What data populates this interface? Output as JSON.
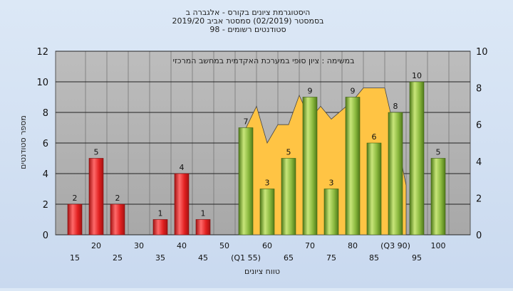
{
  "chart_data": {
    "type": "bar",
    "title_lines": [
      "היסטוגרמת ציונים בקורס - אלגברה ב",
      "בסמסטר  (02/2019)  סמסטר אביב 2019/20",
      "סטודנטים רשומים - 98"
    ],
    "subtitle": "במשימה : ציון סופי במערכת האקדמית במחשב המרכזי",
    "xlabel": "טווח ציונים",
    "ylabel": "מספר סטודנטים",
    "categories": [
      "15",
      "20",
      "25",
      "30",
      "35",
      "40",
      "45",
      "50",
      "55",
      "60",
      "65",
      "70",
      "75",
      "80",
      "85",
      "90",
      "95",
      "100"
    ],
    "category_labels": [
      "15",
      "20",
      "25",
      "30",
      "35",
      "40",
      "45",
      "50",
      "(Q1 55)",
      "60",
      "65",
      "70",
      "75",
      "80",
      "85",
      "(Q3 90)",
      "95",
      "100"
    ],
    "values": [
      2,
      5,
      2,
      0,
      1,
      4,
      1,
      0,
      7,
      3,
      5,
      9,
      3,
      9,
      6,
      8,
      10,
      5
    ],
    "value_labels": [
      "2",
      "5",
      "2",
      "",
      "1",
      "4",
      "1",
      "",
      "7",
      "3",
      "5",
      "9",
      "3",
      "9",
      "6",
      "8",
      "10",
      "5"
    ],
    "bar_colors": [
      "red",
      "red",
      "red",
      "red",
      "red",
      "red",
      "red",
      "red",
      "green",
      "green",
      "green",
      "green",
      "green",
      "green",
      "green",
      "green",
      "green",
      "green"
    ],
    "ylim": [
      0,
      12
    ],
    "yticks": [
      "0",
      "2",
      "4",
      "6",
      "8",
      "10",
      "12"
    ],
    "y2lim": [
      0,
      10
    ],
    "y2ticks": [
      "0",
      "2",
      "4",
      "6",
      "8",
      "10"
    ],
    "area": {
      "x": [
        55,
        57.5,
        60,
        62.5,
        65,
        67.5,
        70,
        72.5,
        75,
        77.5,
        80,
        82.5,
        85,
        87.5,
        90,
        92.5
      ],
      "y2": [
        5.8,
        7.0,
        5.0,
        6.0,
        6.0,
        7.6,
        6.3,
        7.0,
        6.3,
        6.8,
        7.3,
        8.0,
        8.0,
        8.0,
        5.5,
        2.7
      ]
    },
    "grid": true,
    "colors": {
      "plot_bg": "#b0b0b0",
      "area_fill": "#ffc444",
      "red_top": "#ff6a6a",
      "red_mid": "#e12020",
      "red_dark": "#a51212",
      "green_light": "#c8e67a",
      "green_mid": "#8ab83e",
      "green_dark": "#4f7a18"
    }
  }
}
